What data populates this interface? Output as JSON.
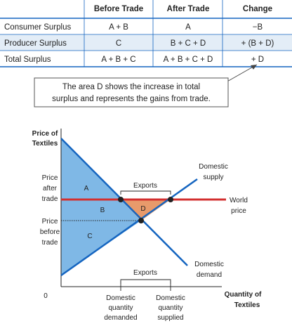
{
  "colors": {
    "accent": "#1565c0",
    "world_line": "#d32f2f",
    "consumer_fill": "#7fb8e6",
    "gains_fill": "#e89a6b",
    "table_shade": "#e3edf7",
    "rule": "#1565c0"
  },
  "table": {
    "headers": [
      "",
      "Before Trade",
      "After Trade",
      "Change"
    ],
    "rows": [
      {
        "label": "Consumer Surplus",
        "before": "A + B",
        "after": "A",
        "change": "−B"
      },
      {
        "label": "Producer Surplus",
        "before": "C",
        "after": "B + C + D",
        "change": "+ (B + D)"
      },
      {
        "label": "Total Surplus",
        "before": "A + B + C",
        "after": "A + B + C + D",
        "change": "+ D"
      }
    ]
  },
  "note": {
    "line1": "The area D shows the increase in total",
    "line2": "surplus and represents the gains from trade."
  },
  "diagram": {
    "y_axis_label": [
      "Price of",
      "Textiles"
    ],
    "x_axis_label": [
      "Quantity of",
      "Textiles"
    ],
    "origin": "0",
    "price_after": [
      "Price",
      "after",
      "trade"
    ],
    "price_before": [
      "Price",
      "before",
      "trade"
    ],
    "supply_label": [
      "Domestic",
      "supply"
    ],
    "demand_label": [
      "Domestic",
      "demand"
    ],
    "world_price_label": [
      "World",
      "price"
    ],
    "exports_label": "Exports",
    "qd_label": [
      "Domestic",
      "quantity",
      "demanded"
    ],
    "qs_label": [
      "Domestic",
      "quantity",
      "supplied"
    ],
    "areas": {
      "A": "A",
      "B": "B",
      "C": "C",
      "D": "D"
    }
  }
}
